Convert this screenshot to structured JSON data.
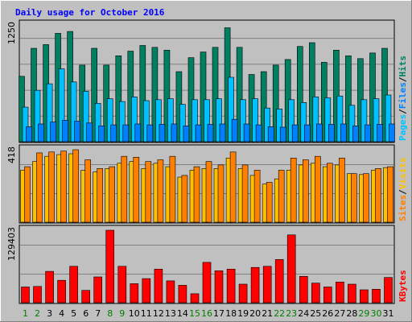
{
  "chart_data": {
    "type": "bar",
    "title": "Daily usage for October 2016",
    "categories": [
      "1",
      "2",
      "3",
      "4",
      "5",
      "6",
      "7",
      "8",
      "9",
      "10",
      "11",
      "12",
      "13",
      "14",
      "15",
      "16",
      "17",
      "18",
      "19",
      "20",
      "21",
      "22",
      "23",
      "24",
      "25",
      "26",
      "27",
      "28",
      "29",
      "30",
      "31"
    ],
    "weekend_days": [
      "1",
      "2",
      "8",
      "9",
      "15",
      "16",
      "22",
      "23",
      "29",
      "30"
    ],
    "panels": [
      {
        "name": "hits-files-pages",
        "y_max_label": "1250",
        "ylim": [
          0,
          1250
        ],
        "legend": [
          "Pages",
          "/",
          "Files",
          "/",
          "Hits"
        ],
        "legend_colors": [
          "#00c0ff",
          "#000000",
          "#0080ff",
          "#000000",
          "#008060"
        ],
        "series": [
          {
            "name": "Hits",
            "color": "#008060",
            "values": [
              700,
              1000,
              1040,
              1160,
              1180,
              820,
              1000,
              820,
              920,
              970,
              1030,
              1010,
              980,
              750,
              900,
              960,
              1010,
              1220,
              1010,
              720,
              750,
              820,
              880,
              1020,
              1060,
              850,
              980,
              920,
              890,
              950,
              1000
            ]
          },
          {
            "name": "Files",
            "color": "#00c0ff",
            "values": [
              370,
              550,
              620,
              780,
              640,
              540,
              410,
              460,
              430,
              480,
              440,
              450,
              460,
              400,
              450,
              450,
              460,
              690,
              450,
              460,
              360,
              350,
              450,
              420,
              480,
              470,
              490,
              390,
              450,
              460,
              500
            ]
          },
          {
            "name": "Pages",
            "color": "#0080ff",
            "values": [
              160,
              190,
              210,
              230,
              220,
              200,
              170,
              180,
              180,
              190,
              180,
              185,
              190,
              170,
              180,
              185,
              190,
              240,
              190,
              180,
              160,
              155,
              180,
              180,
              190,
              185,
              190,
              170,
              180,
              185,
              190
            ]
          }
        ]
      },
      {
        "name": "visits-sites",
        "y_max_label": "418",
        "ylim": [
          0,
          418
        ],
        "legend": [
          "Sites",
          "/",
          "Visits"
        ],
        "legend_colors": [
          "#ff8000",
          "#000000",
          "#ffc000"
        ],
        "series": [
          {
            "name": "Visits",
            "color": "#ffc000",
            "values": [
              300,
              350,
              380,
              390,
              395,
              300,
              290,
              310,
              340,
              350,
              310,
              340,
              320,
              260,
              300,
              310,
              310,
              370,
              310,
              270,
              220,
              250,
              300,
              330,
              340,
              320,
              330,
              280,
              275,
              300,
              315
            ]
          },
          {
            "name": "Sites",
            "color": "#ff8000",
            "values": [
              320,
              400,
              405,
              410,
              418,
              360,
              310,
              320,
              380,
              375,
              350,
              360,
              380,
              270,
              320,
              350,
              330,
              405,
              330,
              300,
              230,
              300,
              370,
              360,
              380,
              340,
              370,
              280,
              280,
              310,
              320
            ]
          }
        ]
      },
      {
        "name": "kbytes",
        "y_max_label": "129403",
        "ylim": [
          0,
          129403
        ],
        "legend": [
          "KBytes"
        ],
        "legend_colors": [
          "#ff0000"
        ],
        "series": [
          {
            "name": "KBytes",
            "color": "#ff0000",
            "values": [
              28000,
              29000,
              56000,
              40000,
              65000,
              22000,
              46000,
              129403,
              65000,
              34000,
              43000,
              60000,
              39000,
              31000,
              16000,
              72000,
              57000,
              60000,
              33000,
              63000,
              65000,
              77000,
              121000,
              47000,
              35000,
              28000,
              37000,
              33000,
              23000,
              24000,
              45000
            ]
          }
        ]
      }
    ]
  }
}
